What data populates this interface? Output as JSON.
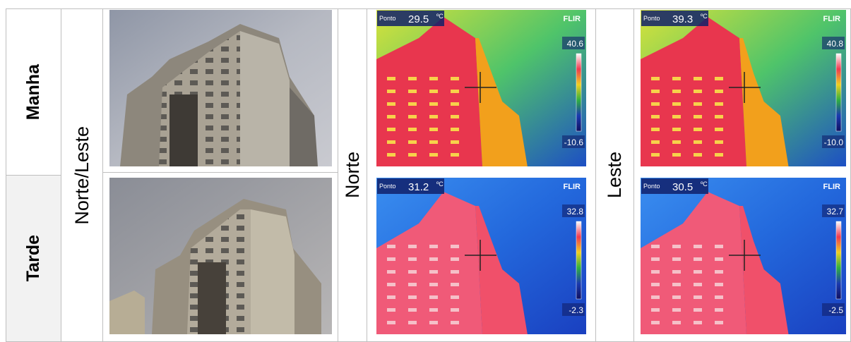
{
  "row_labels": [
    "Manha",
    "Tarde"
  ],
  "orientation": "Norte/Leste",
  "columns": [
    {
      "label": "Norte",
      "images": [
        {
          "spot_label": "Ponto",
          "spot_value": "29.5",
          "unit": "ºC",
          "brand": "FLIR",
          "scale_max": "40.6",
          "scale_min": "-10.6"
        },
        {
          "spot_label": "Ponto",
          "spot_value": "31.2",
          "unit": "ºC",
          "brand": "FLIR",
          "scale_max": "32.8",
          "scale_min": "-2.3"
        }
      ]
    },
    {
      "label": "Leste",
      "images": [
        {
          "spot_label": "Ponto",
          "spot_value": "39.3",
          "unit": "ºC",
          "brand": "FLIR",
          "scale_max": "40.8",
          "scale_min": "-10.0"
        },
        {
          "spot_label": "Ponto",
          "spot_value": "30.5",
          "unit": "ºC",
          "brand": "FLIR",
          "scale_max": "32.7",
          "scale_min": "-2.5"
        }
      ]
    }
  ]
}
